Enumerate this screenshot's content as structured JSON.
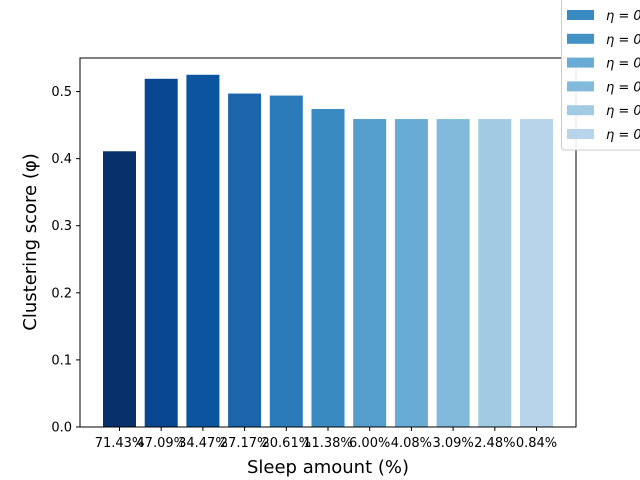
{
  "chart_data": {
    "type": "bar",
    "title": "",
    "xlabel": "Sleep amount (%)",
    "ylabel": "Clustering score (φ)",
    "categories": [
      "71.43%",
      "47.09%",
      "34.47%",
      "27.17%",
      "20.61%",
      "11.38%",
      "6.00%",
      "4.08%",
      "3.09%",
      "2.48%",
      "0.84%"
    ],
    "values": [
      0.411,
      0.519,
      0.525,
      0.497,
      0.494,
      0.474,
      0.459,
      0.459,
      0.459,
      0.459,
      0.459
    ],
    "colors": [
      "#08306b",
      "#08468f",
      "#0b55a0",
      "#1c65ad",
      "#2b7bba",
      "#3a8ac2",
      "#539ecd",
      "#68acd5",
      "#82badb",
      "#a0cbe2",
      "#b7d4ea"
    ],
    "ylim": [
      0,
      0.55
    ],
    "yticks": [
      "0.0",
      "0.1",
      "0.2",
      "0.3",
      "0.4",
      "0.5"
    ],
    "legend": {
      "placement": "top-right",
      "entries": [
        {
          "label": "η = 0",
          "color": "#3a8ac2"
        },
        {
          "label": "η = 0",
          "color": "#4292c6"
        },
        {
          "label": "η = 0",
          "color": "#68acd5"
        },
        {
          "label": "η = 0",
          "color": "#82badb"
        },
        {
          "label": "η = 0",
          "color": "#a0cbe2"
        },
        {
          "label": "η = 0",
          "color": "#b7d4ea"
        }
      ]
    }
  }
}
